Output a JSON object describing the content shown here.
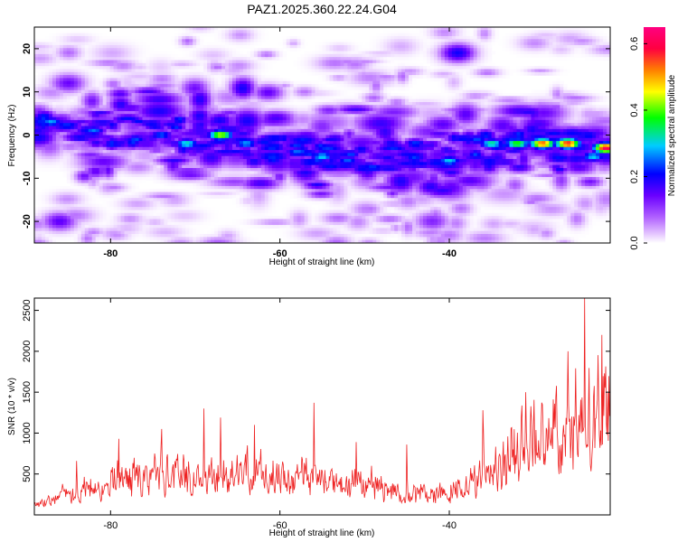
{
  "title": "PAZ1.2025.360.22.24.G04",
  "chart_data": [
    {
      "type": "heatmap",
      "xlabel": "Height of straight line (km)",
      "ylabel": "Frequency (Hz)",
      "xlim": [
        -89,
        -21
      ],
      "ylim": [
        -25,
        25
      ],
      "xticks": [
        -80,
        -60,
        -40
      ],
      "yticks": [
        20,
        10,
        0,
        -10,
        -20
      ],
      "colorbar": {
        "label": "Normalized spectral amplitude",
        "range": [
          0.0,
          0.65
        ],
        "ticks": [
          "0.0",
          "0.2",
          "0.4",
          "0.6"
        ],
        "colormap": [
          "#ffffff",
          "#e6c8ff",
          "#b060ff",
          "#6a00ff",
          "#0000ff",
          "#00ccff",
          "#00ff00",
          "#ffff00",
          "#ff8000",
          "#ff0040",
          "#ff0080"
        ]
      },
      "ridge": {
        "x": [
          -87,
          -80,
          -70,
          -60,
          -50,
          -40,
          -30,
          -22
        ],
        "freq": [
          2,
          1,
          0,
          -3,
          -5,
          -4,
          -2,
          -3
        ]
      },
      "hotspots": [
        {
          "x": -87,
          "freq": 3,
          "amp": 0.28
        },
        {
          "x": -82,
          "freq": 1,
          "amp": 0.26
        },
        {
          "x": -77,
          "freq": -1,
          "amp": 0.24
        },
        {
          "x": -74,
          "freq": 0,
          "amp": 0.25
        },
        {
          "x": -71,
          "freq": -2,
          "amp": 0.32
        },
        {
          "x": -67,
          "freq": 0,
          "amp": 0.45
        },
        {
          "x": -64,
          "freq": -2,
          "amp": 0.28
        },
        {
          "x": -58,
          "freq": -4,
          "amp": 0.26
        },
        {
          "x": -55,
          "freq": -5,
          "amp": 0.3
        },
        {
          "x": -52,
          "freq": -6,
          "amp": 0.25
        },
        {
          "x": -44,
          "freq": -2,
          "amp": 0.24
        },
        {
          "x": -40,
          "freq": -6,
          "amp": 0.3
        },
        {
          "x": -35,
          "freq": -2,
          "amp": 0.34
        },
        {
          "x": -32,
          "freq": -2,
          "amp": 0.4
        },
        {
          "x": -29,
          "freq": -2,
          "amp": 0.55
        },
        {
          "x": -26,
          "freq": -2,
          "amp": 0.58
        },
        {
          "x": -23,
          "freq": -5,
          "amp": 0.3
        },
        {
          "x": -21.5,
          "freq": -3,
          "amp": 0.62
        }
      ],
      "side_blobs": [
        {
          "x": -39,
          "freq": 19,
          "amp": 0.2
        },
        {
          "x": -86,
          "freq": -20,
          "amp": 0.15
        },
        {
          "x": -42,
          "freq": -20,
          "amp": 0.12
        },
        {
          "x": -85,
          "freq": 12,
          "amp": 0.14
        }
      ]
    },
    {
      "type": "line",
      "xlabel": "Height of straight line (km)",
      "ylabel": "SNR (10 * v/v)",
      "xlim": [
        -89,
        -21
      ],
      "ylim": [
        0,
        2650
      ],
      "xticks": [
        -80,
        -60,
        -40
      ],
      "yticks": [
        500,
        1000,
        1500,
        2000,
        2500
      ],
      "color": "#ee2222",
      "envelope": {
        "x": [
          -89,
          -85,
          -80,
          -75,
          -70,
          -65,
          -60,
          -55,
          -50,
          -45,
          -40,
          -36,
          -33,
          -30,
          -27,
          -24,
          -21
        ],
        "y": [
          150,
          250,
          450,
          550,
          600,
          500,
          500,
          450,
          400,
          280,
          350,
          550,
          800,
          1000,
          1200,
          1300,
          1400
        ]
      },
      "peaks": [
        {
          "x": -84,
          "y": 660
        },
        {
          "x": -79,
          "y": 930
        },
        {
          "x": -74,
          "y": 1050
        },
        {
          "x": -69,
          "y": 1300
        },
        {
          "x": -67,
          "y": 1190
        },
        {
          "x": -63,
          "y": 1100
        },
        {
          "x": -56,
          "y": 1370
        },
        {
          "x": -51,
          "y": 890
        },
        {
          "x": -45,
          "y": 860
        },
        {
          "x": -36,
          "y": 1280
        },
        {
          "x": -31,
          "y": 1500
        },
        {
          "x": -26,
          "y": 2000
        },
        {
          "x": -24,
          "y": 2650
        },
        {
          "x": -22,
          "y": 2200
        }
      ]
    }
  ]
}
